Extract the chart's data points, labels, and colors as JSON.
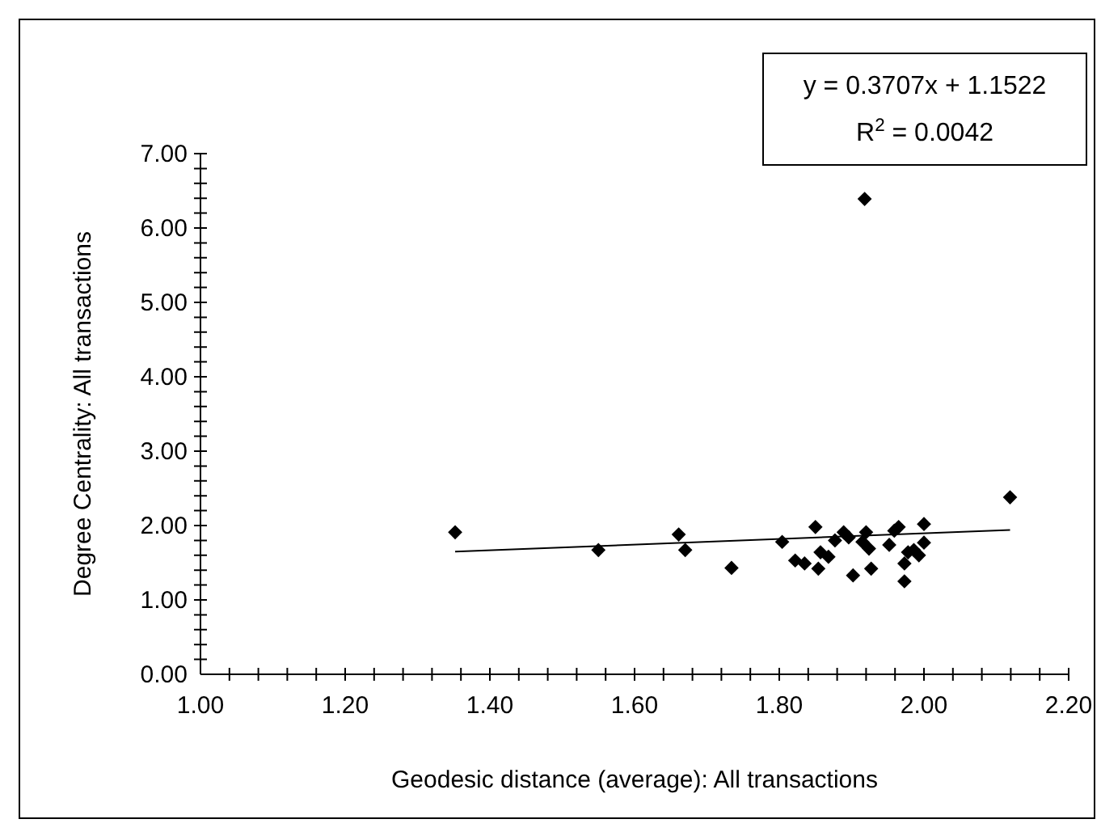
{
  "chart_data": {
    "type": "scatter",
    "xlabel": "Geodesic distance (average): All transactions",
    "ylabel": "Degree Centrality: All transactions",
    "annotations": [
      "y = 0.3707x + 1.1522",
      "R$^{2}$ = 0.0042"
    ],
    "xlim": [
      1.0,
      2.2
    ],
    "xticks": [
      {
        "value": 1.0,
        "label": "1.00"
      },
      {
        "value": 1.04,
        "label": null
      },
      {
        "value": 1.08,
        "label": null
      },
      {
        "value": 1.12,
        "label": null
      },
      {
        "value": 1.16,
        "label": null
      },
      {
        "value": 1.2,
        "label": "1.20"
      },
      {
        "value": 1.24,
        "label": null
      },
      {
        "value": 1.28,
        "label": null
      },
      {
        "value": 1.32,
        "label": null
      },
      {
        "value": 1.36,
        "label": null
      },
      {
        "value": 1.4,
        "label": "1.40"
      },
      {
        "value": 1.44,
        "label": null
      },
      {
        "value": 1.48,
        "label": null
      },
      {
        "value": 1.52,
        "label": null
      },
      {
        "value": 1.56,
        "label": null
      },
      {
        "value": 1.6,
        "label": "1.60"
      },
      {
        "value": 1.64,
        "label": null
      },
      {
        "value": 1.68,
        "label": null
      },
      {
        "value": 1.72,
        "label": null
      },
      {
        "value": 1.76,
        "label": null
      },
      {
        "value": 1.8,
        "label": "1.80"
      },
      {
        "value": 1.84,
        "label": null
      },
      {
        "value": 1.88,
        "label": null
      },
      {
        "value": 1.92,
        "label": null
      },
      {
        "value": 1.96,
        "label": null
      },
      {
        "value": 2.0,
        "label": "2.00"
      },
      {
        "value": 2.04,
        "label": null
      },
      {
        "value": 2.08,
        "label": null
      },
      {
        "value": 2.12,
        "label": null
      },
      {
        "value": 2.16,
        "label": null
      },
      {
        "value": 2.2,
        "label": "2.20"
      }
    ],
    "ylim": [
      0,
      7
    ],
    "yticks": [
      {
        "value": 0,
        "label": "0.00"
      },
      {
        "value": 0.2,
        "label": null
      },
      {
        "value": 0.4,
        "label": null
      },
      {
        "value": 0.6,
        "label": null
      },
      {
        "value": 0.8,
        "label": null
      },
      {
        "value": 1,
        "label": "1.00"
      },
      {
        "value": 1.2,
        "label": null
      },
      {
        "value": 1.4,
        "label": null
      },
      {
        "value": 1.6,
        "label": null
      },
      {
        "value": 1.8,
        "label": null
      },
      {
        "value": 2,
        "label": "2.00"
      },
      {
        "value": 2.2,
        "label": null
      },
      {
        "value": 2.4,
        "label": null
      },
      {
        "value": 2.6,
        "label": null
      },
      {
        "value": 2.8,
        "label": null
      },
      {
        "value": 3,
        "label": "3.00"
      },
      {
        "value": 3.2,
        "label": null
      },
      {
        "value": 3.4,
        "label": null
      },
      {
        "value": 3.6,
        "label": null
      },
      {
        "value": 3.8,
        "label": null
      },
      {
        "value": 4,
        "label": "4.00"
      },
      {
        "value": 4.2,
        "label": null
      },
      {
        "value": 4.4,
        "label": null
      },
      {
        "value": 4.6,
        "label": null
      },
      {
        "value": 4.8,
        "label": null
      },
      {
        "value": 5,
        "label": "5.00"
      },
      {
        "value": 5.2,
        "label": null
      },
      {
        "value": 5.4,
        "label": null
      },
      {
        "value": 5.6,
        "label": null
      },
      {
        "value": 5.8,
        "label": null
      },
      {
        "value": 6,
        "label": "6.00"
      },
      {
        "value": 6.2,
        "label": null
      },
      {
        "value": 6.4,
        "label": null
      },
      {
        "value": 6.6,
        "label": null
      },
      {
        "value": 6.8,
        "label": null
      },
      {
        "value": 7,
        "label": "7.00"
      }
    ],
    "grid": false,
    "marker": "diamond",
    "series": [
      {
        "color": "#000000",
        "x": [
          1.352,
          1.55,
          1.661,
          1.67,
          1.734,
          1.804,
          1.822,
          1.835,
          1.85,
          1.854,
          1.857,
          1.868,
          1.877,
          1.889,
          1.896,
          1.902,
          1.915,
          1.92,
          1.924,
          1.927,
          1.952,
          1.959,
          1.965,
          1.973,
          1.973,
          1.978,
          1.986,
          1.993,
          2.0,
          2.0,
          2.119,
          1.918
        ],
        "values": [
          1.91,
          1.67,
          1.88,
          1.67,
          1.43,
          1.78,
          1.53,
          1.49,
          1.98,
          1.42,
          1.64,
          1.58,
          1.8,
          1.91,
          1.84,
          1.33,
          1.78,
          1.91,
          1.69,
          1.42,
          1.74,
          1.93,
          1.98,
          1.49,
          1.25,
          1.64,
          1.67,
          1.6,
          1.77,
          2.02,
          2.38,
          6.39
        ]
      },
      {
        "type": "line",
        "color": "#000000",
        "line_style": "solid",
        "marker": "none",
        "x": [
          1.352,
          2.119
        ],
        "values": [
          1.65,
          1.94
        ]
      }
    ]
  }
}
